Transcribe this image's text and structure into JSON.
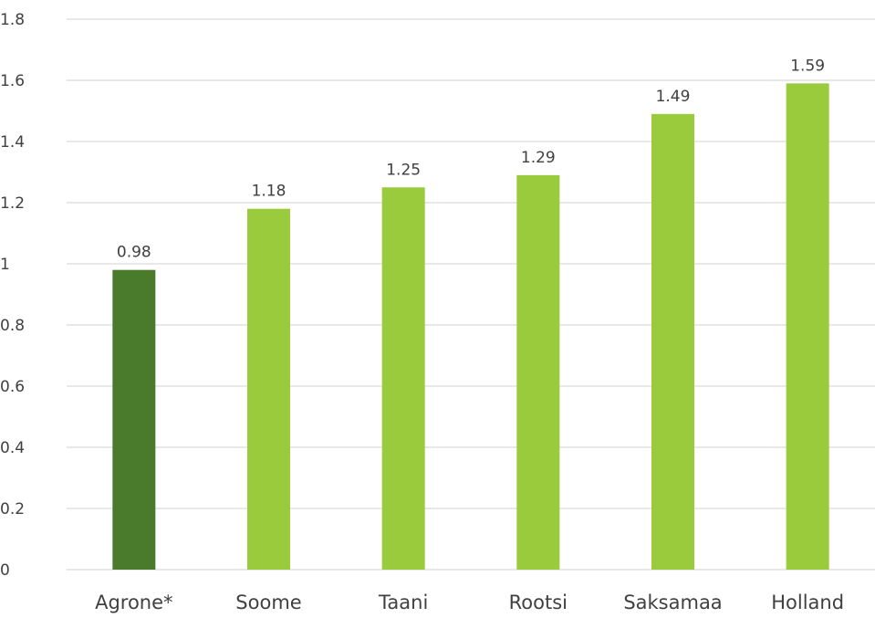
{
  "chart_data": {
    "type": "bar",
    "categories": [
      "Agrone*",
      "Soome",
      "Taani",
      "Rootsi",
      "Saksamaa",
      "Holland"
    ],
    "values": [
      0.98,
      1.18,
      1.25,
      1.29,
      1.49,
      1.59
    ],
    "value_labels": [
      "0.98",
      "1.18",
      "1.25",
      "1.29",
      "1.49",
      "1.59"
    ],
    "bar_colors": [
      "#4a7a2c",
      "#9acb3c",
      "#9acb3c",
      "#9acb3c",
      "#9acb3c",
      "#9acb3c"
    ],
    "ylim": [
      0,
      1.8
    ],
    "yticks": [
      0,
      0.2,
      0.4,
      0.6,
      0.8,
      1,
      1.2,
      1.4,
      1.6,
      1.8
    ],
    "ytick_labels": [
      "0",
      "0.2",
      "0.4",
      "0.6",
      "0.8",
      "1",
      "1.2",
      "1.4",
      "1.6",
      "1.8"
    ],
    "grid": true,
    "legend": "none",
    "title": "",
    "xlabel": "",
    "ylabel": ""
  }
}
